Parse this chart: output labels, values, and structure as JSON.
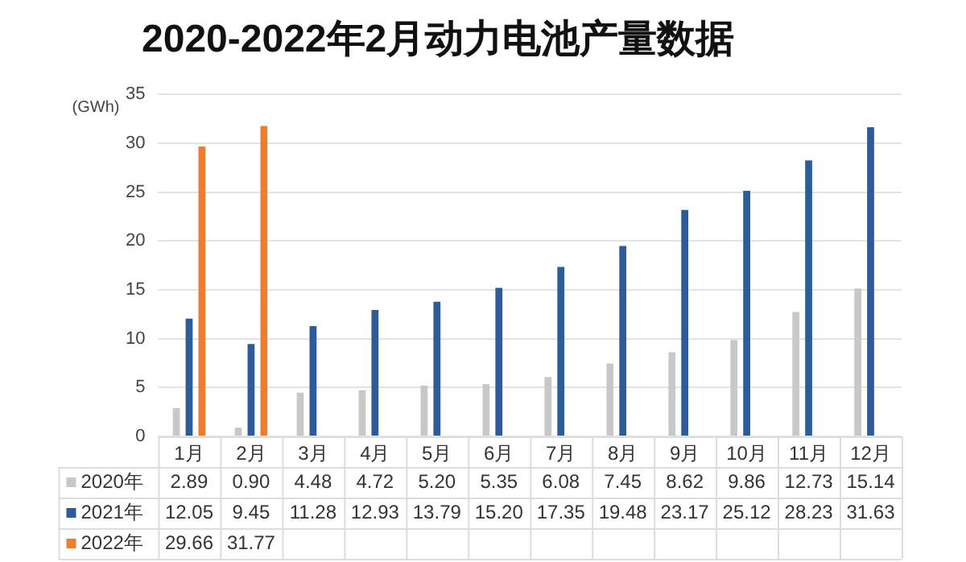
{
  "chart_data": {
    "type": "bar",
    "title": "2020-2022年2月动力电池产量数据",
    "ylabel": "(GWh)",
    "categories": [
      "1月",
      "2月",
      "3月",
      "4月",
      "5月",
      "6月",
      "7月",
      "8月",
      "9月",
      "10月",
      "11月",
      "12月"
    ],
    "series": [
      {
        "name": "2020年",
        "color": "#c8c8c8",
        "values": [
          2.89,
          0.9,
          4.48,
          4.72,
          5.2,
          5.35,
          6.08,
          7.45,
          8.62,
          9.86,
          12.73,
          15.14
        ],
        "value_labels": [
          "2.89",
          "0.90",
          "4.48",
          "4.72",
          "5.20",
          "5.35",
          "6.08",
          "7.45",
          "8.62",
          "9.86",
          "12.73",
          "15.14"
        ]
      },
      {
        "name": "2021年",
        "color": "#2e5c9a",
        "values": [
          12.05,
          9.45,
          11.28,
          12.93,
          13.79,
          15.2,
          17.35,
          19.48,
          23.17,
          25.12,
          28.23,
          31.63
        ],
        "value_labels": [
          "12.05",
          "9.45",
          "11.28",
          "12.93",
          "13.79",
          "15.20",
          "17.35",
          "19.48",
          "23.17",
          "25.12",
          "28.23",
          "31.63"
        ]
      },
      {
        "name": "2022年",
        "color": "#ed7d31",
        "values": [
          29.66,
          31.77,
          null,
          null,
          null,
          null,
          null,
          null,
          null,
          null,
          null,
          null
        ],
        "value_labels": [
          "29.66",
          "31.77",
          null,
          null,
          null,
          null,
          null,
          null,
          null,
          null,
          null,
          null
        ]
      }
    ],
    "ylim": [
      0,
      35
    ],
    "yticks": [
      0,
      5,
      10,
      15,
      20,
      25,
      30,
      35
    ],
    "grid": "y",
    "legend": "bottom"
  }
}
